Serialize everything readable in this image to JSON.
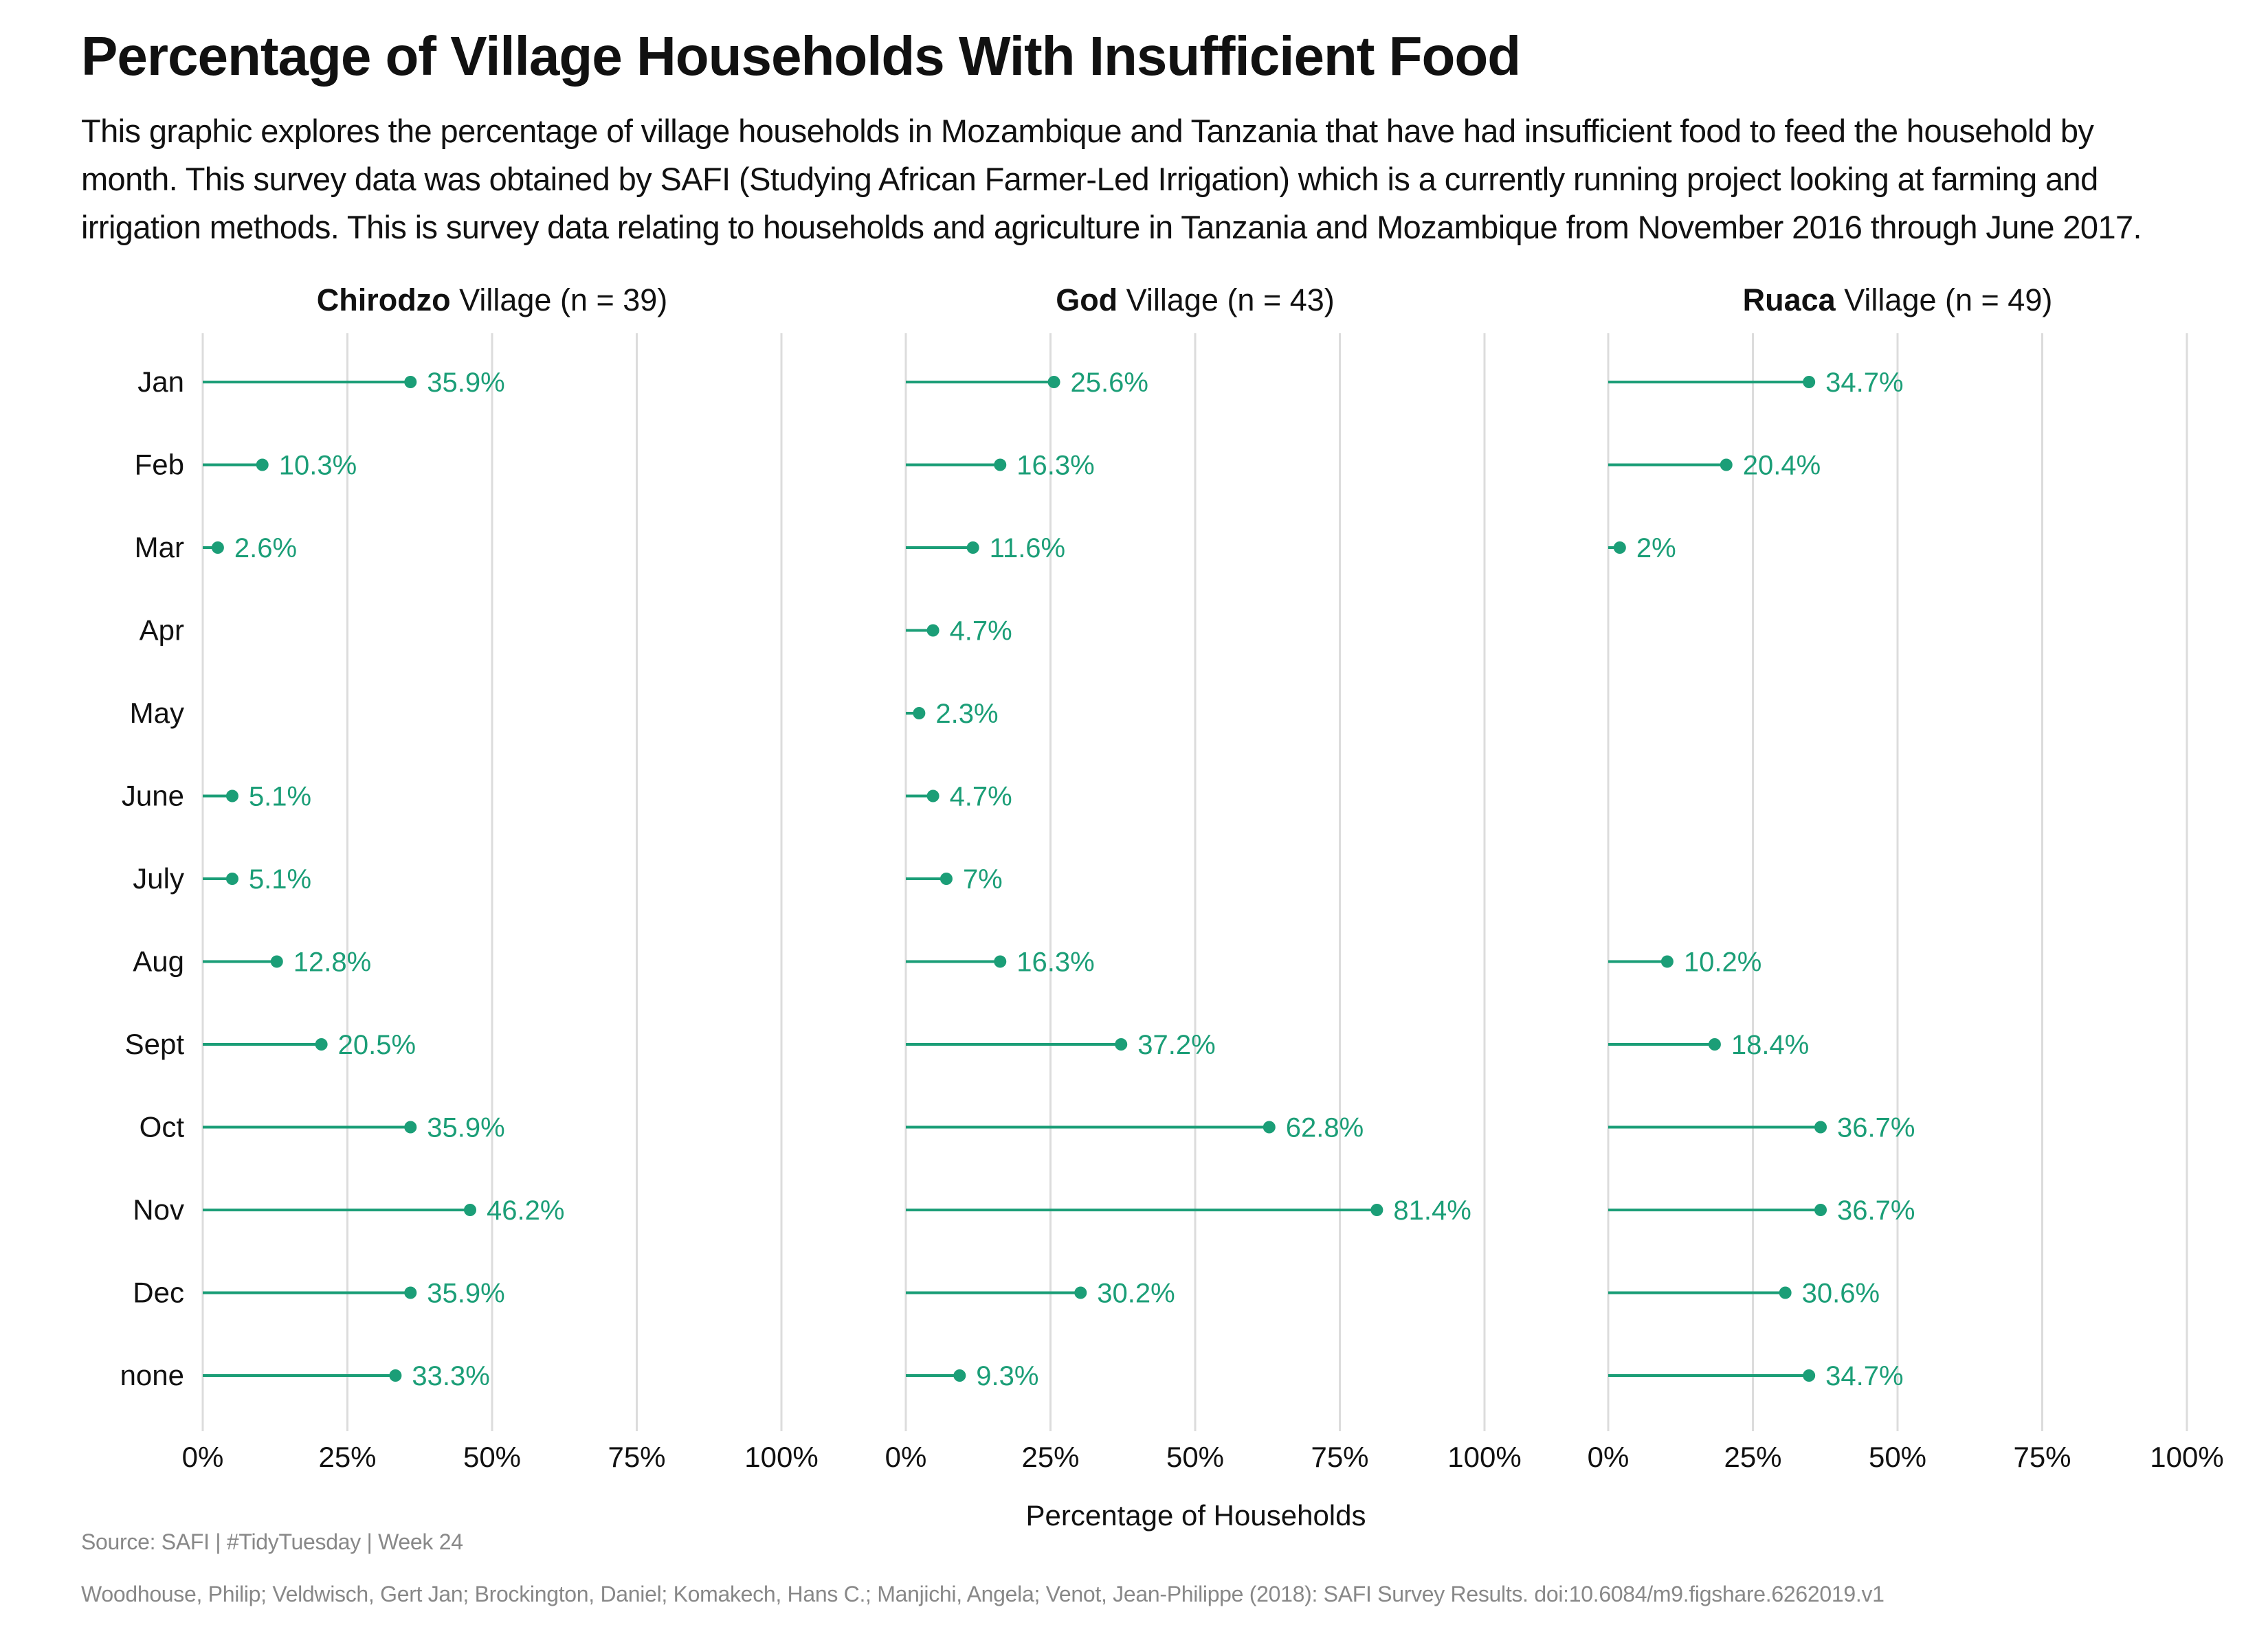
{
  "title": "Percentage of Village Households With Insufficient Food",
  "subtitle": "This graphic explores the percentage of village households in Mozambique and Tanzania that have had insufficient food to feed the household by month. This survey data was obtained by SAFI (Studying African Farmer-Led Irrigation) which is a currently running project looking at farming and irrigation methods. This is survey data relating to households and agriculture in Tanzania and Mozambique from November 2016 through June 2017.",
  "caption": {
    "source": "Source: SAFI | #TidyTuesday | Week 24",
    "citation": "Woodhouse, Philip; Veldwisch, Gert Jan; Brockington, Daniel; Komakech, Hans C.; Manjichi, Angela; Venot, Jean-Philippe (2018): SAFI Survey Results. doi:10.6084/m9.figshare.6262019.v1"
  },
  "colors": {
    "series": "#1b9e77",
    "grid": "#dcdcdc",
    "text": "#111111",
    "caption": "#888888"
  },
  "chart_data": {
    "type": "lollipop",
    "xlabel": "Percentage of Households",
    "ylabel": "",
    "xlim": [
      0,
      100
    ],
    "x_ticks": [
      "0%",
      "25%",
      "50%",
      "75%",
      "100%"
    ],
    "grid": true,
    "categories": [
      "Jan",
      "Feb",
      "Mar",
      "Apr",
      "May",
      "June",
      "July",
      "Aug",
      "Sept",
      "Oct",
      "Nov",
      "Dec",
      "none"
    ],
    "panels": [
      {
        "village": "Chirodzo",
        "suffix": "Village (n = 39)",
        "values": [
          35.9,
          10.3,
          2.6,
          null,
          null,
          5.1,
          5.1,
          12.8,
          20.5,
          35.9,
          46.2,
          35.9,
          33.3
        ],
        "labels": [
          "35.9%",
          "10.3%",
          "2.6%",
          null,
          null,
          "5.1%",
          "5.1%",
          "12.8%",
          "20.5%",
          "35.9%",
          "46.2%",
          "35.9%",
          "33.3%"
        ]
      },
      {
        "village": "God",
        "suffix": "Village (n = 43)",
        "values": [
          25.6,
          16.3,
          11.6,
          4.7,
          2.3,
          4.7,
          7,
          16.3,
          37.2,
          62.8,
          81.4,
          30.2,
          9.3
        ],
        "labels": [
          "25.6%",
          "16.3%",
          "11.6%",
          "4.7%",
          "2.3%",
          "4.7%",
          "7%",
          "16.3%",
          "37.2%",
          "62.8%",
          "81.4%",
          "30.2%",
          "9.3%"
        ]
      },
      {
        "village": "Ruaca",
        "suffix": "Village (n = 49)",
        "values": [
          34.7,
          20.4,
          2,
          null,
          null,
          null,
          null,
          10.2,
          18.4,
          36.7,
          36.7,
          30.6,
          34.7
        ],
        "labels": [
          "34.7%",
          "20.4%",
          "2%",
          null,
          null,
          null,
          null,
          "10.2%",
          "18.4%",
          "36.7%",
          "36.7%",
          "30.6%",
          "34.7%"
        ]
      }
    ]
  }
}
